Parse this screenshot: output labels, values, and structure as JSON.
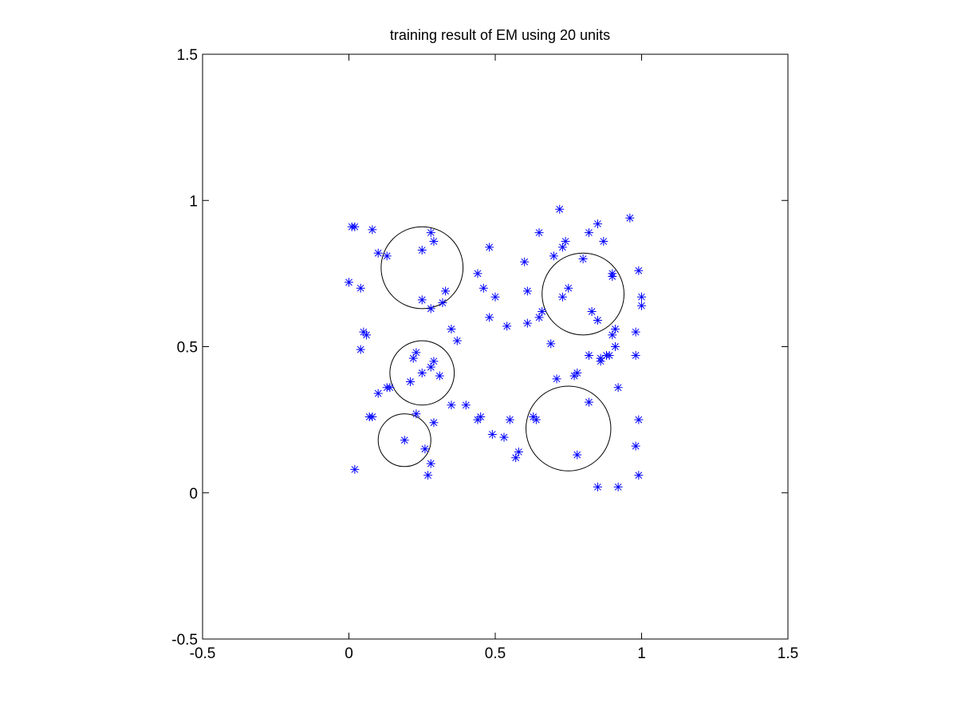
{
  "chart_data": {
    "type": "scatter",
    "title": "training result of EM using 20 units",
    "xlabel": "",
    "ylabel": "",
    "xlim": [
      -0.5,
      1.5
    ],
    "ylim": [
      -0.5,
      1.5
    ],
    "xticks": [
      "-0.5",
      "0",
      "0.5",
      "1",
      "1.5"
    ],
    "yticks": [
      "-0.5",
      "0",
      "0.5",
      "1",
      "1.5"
    ],
    "grid": false,
    "marker": "asterisk",
    "marker_color": "#0000ff",
    "circle_color": "#000000",
    "points": [
      [
        0.02,
        0.91
      ],
      [
        0.01,
        0.91
      ],
      [
        0.08,
        0.9
      ],
      [
        0.1,
        0.82
      ],
      [
        0.13,
        0.81
      ],
      [
        0.0,
        0.72
      ],
      [
        0.04,
        0.7
      ],
      [
        0.05,
        0.55
      ],
      [
        0.06,
        0.54
      ],
      [
        0.04,
        0.49
      ],
      [
        0.1,
        0.34
      ],
      [
        0.13,
        0.36
      ],
      [
        0.14,
        0.36
      ],
      [
        0.07,
        0.26
      ],
      [
        0.08,
        0.26
      ],
      [
        0.02,
        0.08
      ],
      [
        0.28,
        0.89
      ],
      [
        0.29,
        0.86
      ],
      [
        0.25,
        0.83
      ],
      [
        0.33,
        0.69
      ],
      [
        0.32,
        0.65
      ],
      [
        0.25,
        0.66
      ],
      [
        0.28,
        0.63
      ],
      [
        0.35,
        0.56
      ],
      [
        0.37,
        0.52
      ],
      [
        0.23,
        0.48
      ],
      [
        0.22,
        0.46
      ],
      [
        0.29,
        0.45
      ],
      [
        0.28,
        0.43
      ],
      [
        0.25,
        0.41
      ],
      [
        0.31,
        0.4
      ],
      [
        0.21,
        0.38
      ],
      [
        0.35,
        0.3
      ],
      [
        0.4,
        0.3
      ],
      [
        0.23,
        0.27
      ],
      [
        0.29,
        0.24
      ],
      [
        0.19,
        0.18
      ],
      [
        0.26,
        0.15
      ],
      [
        0.28,
        0.1
      ],
      [
        0.27,
        0.06
      ],
      [
        0.48,
        0.84
      ],
      [
        0.44,
        0.75
      ],
      [
        0.46,
        0.7
      ],
      [
        0.5,
        0.67
      ],
      [
        0.48,
        0.6
      ],
      [
        0.54,
        0.57
      ],
      [
        0.44,
        0.25
      ],
      [
        0.45,
        0.26
      ],
      [
        0.55,
        0.25
      ],
      [
        0.49,
        0.2
      ],
      [
        0.53,
        0.19
      ],
      [
        0.58,
        0.14
      ],
      [
        0.57,
        0.12
      ],
      [
        0.6,
        0.79
      ],
      [
        0.61,
        0.69
      ],
      [
        0.61,
        0.58
      ],
      [
        0.65,
        0.6
      ],
      [
        0.66,
        0.62
      ],
      [
        0.65,
        0.89
      ],
      [
        0.72,
        0.97
      ],
      [
        0.73,
        0.84
      ],
      [
        0.74,
        0.86
      ],
      [
        0.7,
        0.81
      ],
      [
        0.73,
        0.67
      ],
      [
        0.75,
        0.7
      ],
      [
        0.8,
        0.8
      ],
      [
        0.82,
        0.89
      ],
      [
        0.85,
        0.92
      ],
      [
        0.87,
        0.86
      ],
      [
        0.83,
        0.62
      ],
      [
        0.85,
        0.59
      ],
      [
        0.9,
        0.75
      ],
      [
        0.9,
        0.74
      ],
      [
        0.96,
        0.94
      ],
      [
        0.99,
        0.76
      ],
      [
        1.0,
        0.67
      ],
      [
        1.0,
        0.64
      ],
      [
        0.69,
        0.51
      ],
      [
        0.71,
        0.39
      ],
      [
        0.77,
        0.4
      ],
      [
        0.78,
        0.41
      ],
      [
        0.82,
        0.47
      ],
      [
        0.86,
        0.46
      ],
      [
        0.86,
        0.45
      ],
      [
        0.88,
        0.47
      ],
      [
        0.89,
        0.47
      ],
      [
        0.9,
        0.54
      ],
      [
        0.91,
        0.56
      ],
      [
        0.91,
        0.5
      ],
      [
        0.98,
        0.55
      ],
      [
        0.98,
        0.47
      ],
      [
        0.63,
        0.26
      ],
      [
        0.64,
        0.25
      ],
      [
        0.82,
        0.31
      ],
      [
        0.92,
        0.36
      ],
      [
        0.78,
        0.13
      ],
      [
        0.99,
        0.25
      ],
      [
        0.98,
        0.16
      ],
      [
        0.85,
        0.02
      ],
      [
        0.92,
        0.02
      ],
      [
        0.99,
        0.06
      ]
    ],
    "circles": [
      {
        "cx": 0.25,
        "cy": 0.77,
        "r": 0.14
      },
      {
        "cx": 0.8,
        "cy": 0.68,
        "r": 0.14
      },
      {
        "cx": 0.25,
        "cy": 0.41,
        "r": 0.11
      },
      {
        "cx": 0.19,
        "cy": 0.18,
        "r": 0.09
      },
      {
        "cx": 0.75,
        "cy": 0.22,
        "r": 0.145
      }
    ]
  }
}
